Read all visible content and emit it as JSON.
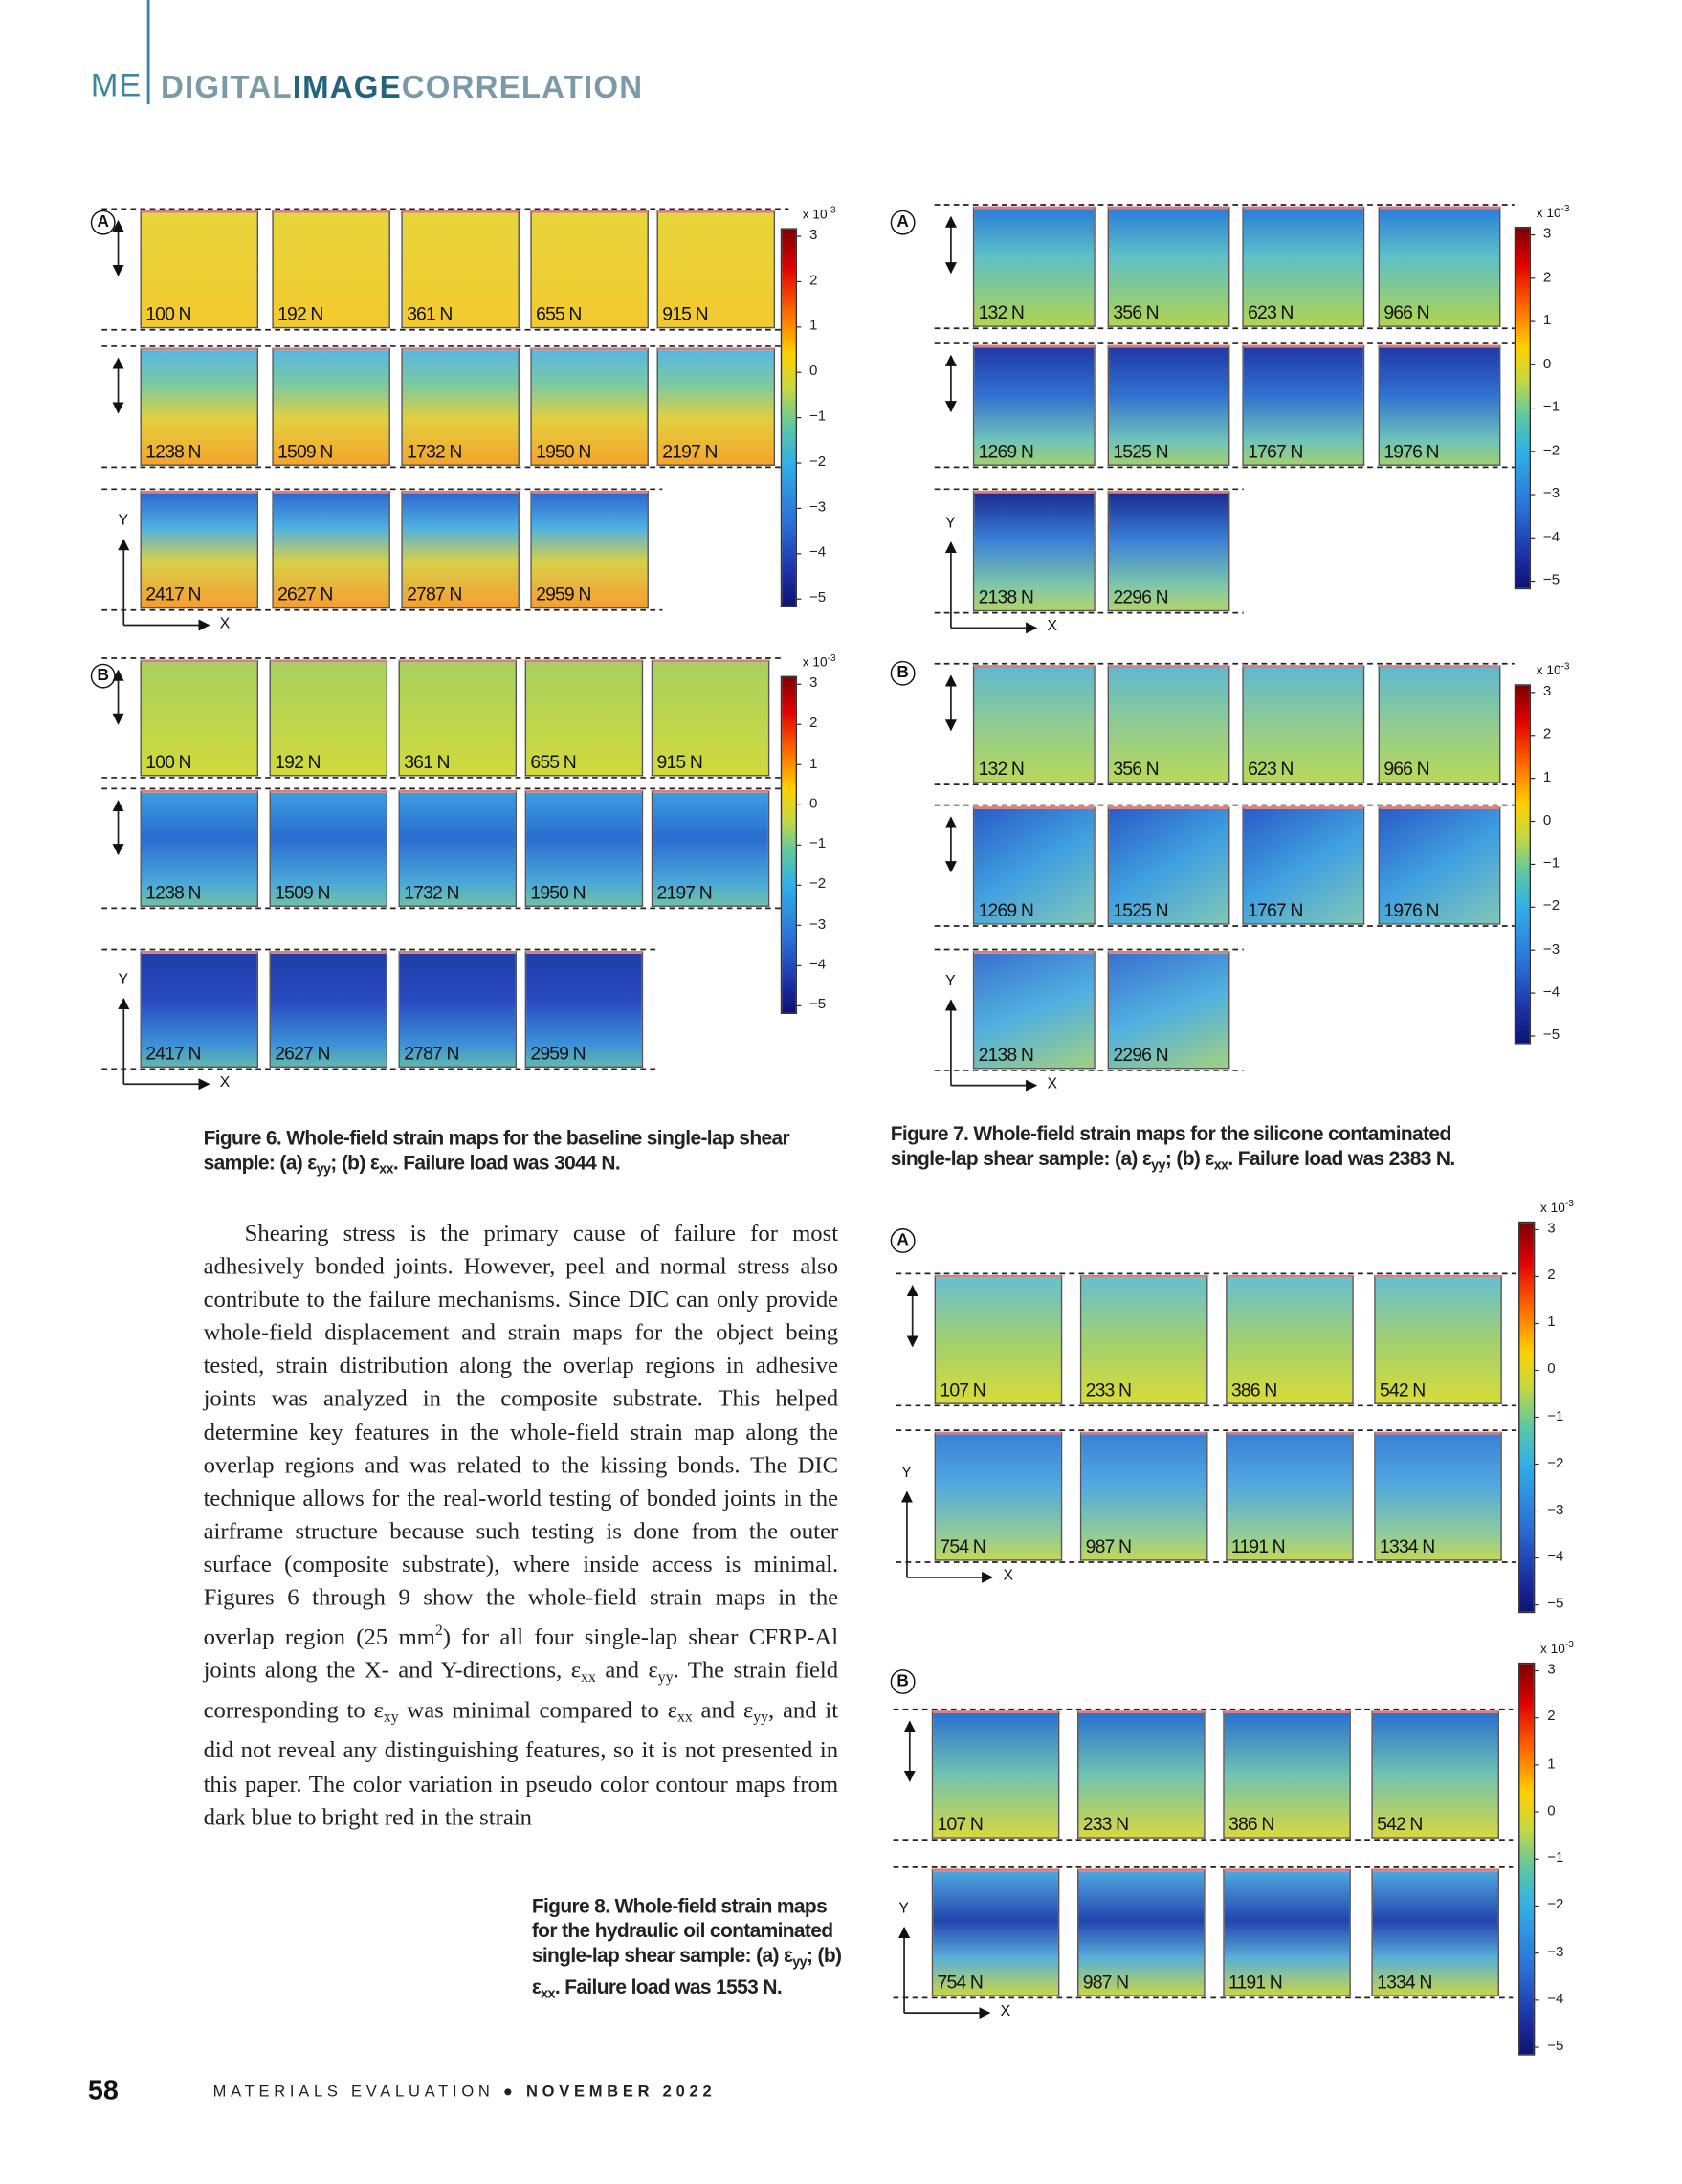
{
  "header": {
    "section": "ME",
    "title_parts": [
      "DIGITAL",
      "IMAGE",
      "CORRELATION"
    ]
  },
  "figures": [
    {
      "panels": [
        {
          "letter": "A",
          "rows": [
            [
              "100 N",
              "192 N",
              "361 N",
              "655 N",
              "915 N"
            ],
            [
              "1238 N",
              "1509 N",
              "1732 N",
              "1950 N",
              "2197 N"
            ],
            [
              "2417 N",
              "2627 N",
              "2787 N",
              "2959 N"
            ]
          ],
          "colorbar": {
            "multiplier": "x 10",
            "exponent": "-3",
            "ticks": [
              "3",
              "2",
              "1",
              "0",
              "−1",
              "−2",
              "−3",
              "−4",
              "−5"
            ]
          },
          "x_axis": "X",
          "y_axis": "Y"
        },
        {
          "letter": "B",
          "rows": [
            [
              "100 N",
              "192 N",
              "361 N",
              "655 N",
              "915 N"
            ],
            [
              "1238 N",
              "1509 N",
              "1732 N",
              "1950 N",
              "2197 N"
            ],
            [
              "2417 N",
              "2627 N",
              "2787 N",
              "2959 N"
            ]
          ],
          "colorbar": {
            "multiplier": "x 10",
            "exponent": "-3",
            "ticks": [
              "3",
              "2",
              "1",
              "0",
              "−1",
              "−2",
              "−3",
              "−4",
              "−5"
            ]
          },
          "x_axis": "X",
          "y_axis": "Y"
        }
      ],
      "caption": [
        "Figure 6. Whole-field strain maps for the baseline single-lap shear sample: (a) ε",
        "yy",
        "; (b) ε",
        "xx",
        ". Failure load was 3044 N."
      ]
    },
    {
      "panels": [
        {
          "letter": "A",
          "rows": [
            [
              "132 N",
              "356 N",
              "623 N",
              "966 N"
            ],
            [
              "1269 N",
              "1525 N",
              "1767 N",
              "1976 N"
            ],
            [
              "2138 N",
              "2296 N"
            ]
          ],
          "colorbar": {
            "multiplier": "x 10",
            "exponent": "-3",
            "ticks": [
              "3",
              "2",
              "1",
              "0",
              "−1",
              "−2",
              "−3",
              "−4",
              "−5"
            ]
          },
          "x_axis": "X",
          "y_axis": "Y"
        },
        {
          "letter": "B",
          "rows": [
            [
              "132 N",
              "356 N",
              "623 N",
              "966 N"
            ],
            [
              "1269 N",
              "1525 N",
              "1767 N",
              "1976 N"
            ],
            [
              "2138 N",
              "2296 N"
            ]
          ],
          "colorbar": {
            "multiplier": "x 10",
            "exponent": "-3",
            "ticks": [
              "3",
              "2",
              "1",
              "0",
              "−1",
              "−2",
              "−3",
              "−4",
              "−5"
            ]
          },
          "x_axis": "X",
          "y_axis": "Y"
        }
      ],
      "caption": [
        "Figure 7. Whole-field strain maps for the silicone contaminated single-lap shear sample: (a) ε",
        "yy",
        "; (b) ε",
        "xx",
        ". Failure load was 2383 N."
      ]
    },
    {
      "panels": [
        {
          "letter": "A",
          "rows": [
            [
              "107 N",
              "233 N",
              "386 N",
              "542 N"
            ],
            [
              "754 N",
              "987 N",
              "1191 N",
              "1334 N"
            ]
          ],
          "colorbar": {
            "multiplier": "x 10",
            "exponent": "-3",
            "ticks": [
              "3",
              "2",
              "1",
              "0",
              "−1",
              "−2",
              "−3",
              "−4",
              "−5"
            ]
          },
          "x_axis": "X",
          "y_axis": "Y"
        },
        {
          "letter": "B",
          "rows": [
            [
              "107 N",
              "233 N",
              "386 N",
              "542 N"
            ],
            [
              "754 N",
              "987 N",
              "1191 N",
              "1334 N"
            ]
          ],
          "colorbar": {
            "multiplier": "x 10",
            "exponent": "-3",
            "ticks": [
              "3",
              "2",
              "1",
              "0",
              "−1",
              "−2",
              "−3",
              "−4",
              "−5"
            ]
          },
          "x_axis": "X",
          "y_axis": "Y"
        }
      ],
      "caption": [
        "Figure 8. Whole-field strain maps for the hydraulic oil contaminated single-lap shear sample: (a) ε",
        "yy",
        "; (b) ε",
        "xx",
        ". Failure load was 1553 N."
      ]
    }
  ],
  "body": [
    "Shearing stress is the primary cause of failure for most adhesively bonded joints. However, peel and normal stress also contribute to the failure mechanisms. Since DIC can only provide whole-field displacement and strain maps for the object being tested, strain distribution along the overlap regions in adhesive joints was analyzed in the composite substrate. This helped determine key features in the whole-field strain map along the overlap regions and was related to the kissing bonds. The DIC technique allows for the real-world testing of bonded joints in the airframe structure because such testing is done from the outer surface (composite substrate), where inside access is minimal. Figures 6 through 9 show the whole-field strain maps in the overlap region (25 mm",
    "2",
    ") for all four single-lap shear CFRP-Al joints along the X- and Y-directions, ε",
    "xx",
    " and ε",
    "yy",
    ". The strain field corresponding to ε",
    "xy",
    " was minimal compared to ε",
    "xx",
    " and ε",
    "yy",
    ", and it did not reveal any distinguishing features, so it is not presented in this paper. The color variation in pseudo color contour maps from dark blue to bright red in the strain"
  ],
  "footer": {
    "page": "58",
    "journal": "MATERIALS EVALUATION",
    "separator": "●",
    "issue": "NOVEMBER 2022"
  }
}
